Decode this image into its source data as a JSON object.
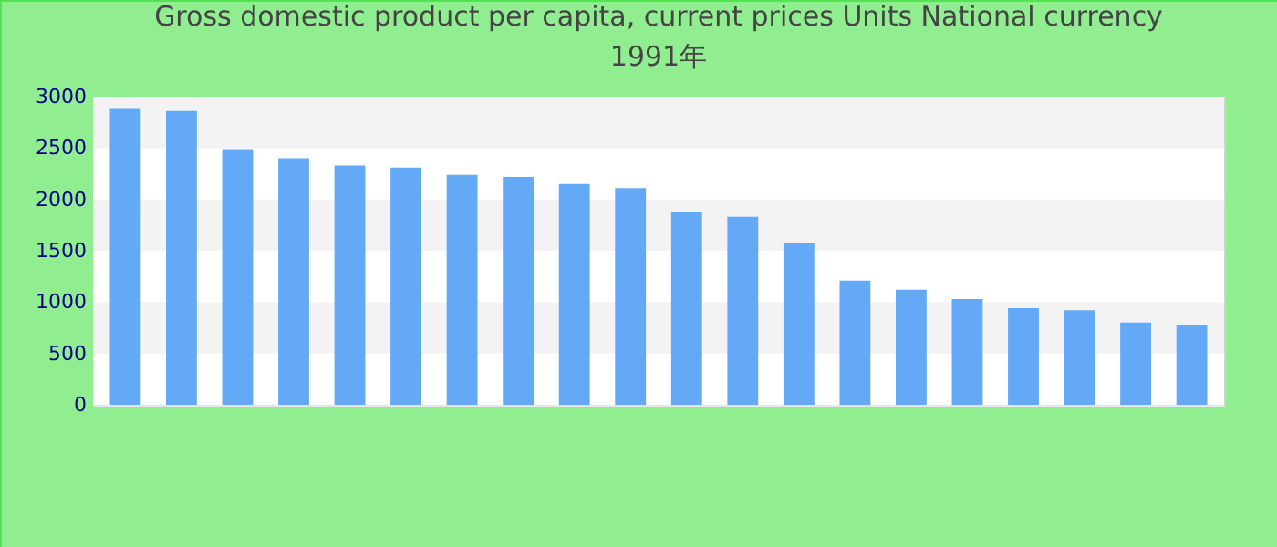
{
  "chart_data": {
    "type": "bar",
    "title": "Gross domestic product per capita, current prices Units National currency 1991年",
    "categories": [
      null,
      null,
      null,
      null,
      null,
      null,
      null,
      null,
      null,
      null,
      null,
      null,
      null,
      null,
      null,
      null,
      null,
      null,
      null,
      null
    ],
    "values": [
      2880,
      2860,
      2490,
      2400,
      2330,
      2310,
      2240,
      2220,
      2150,
      2110,
      1880,
      1830,
      1580,
      1210,
      1120,
      1030,
      940,
      920,
      800,
      780
    ],
    "color": "#63a9f5",
    "ylim": [
      0,
      3000
    ],
    "yticks": [
      0,
      500,
      1000,
      1500,
      2000,
      2500,
      3000
    ],
    "grid": "y"
  }
}
